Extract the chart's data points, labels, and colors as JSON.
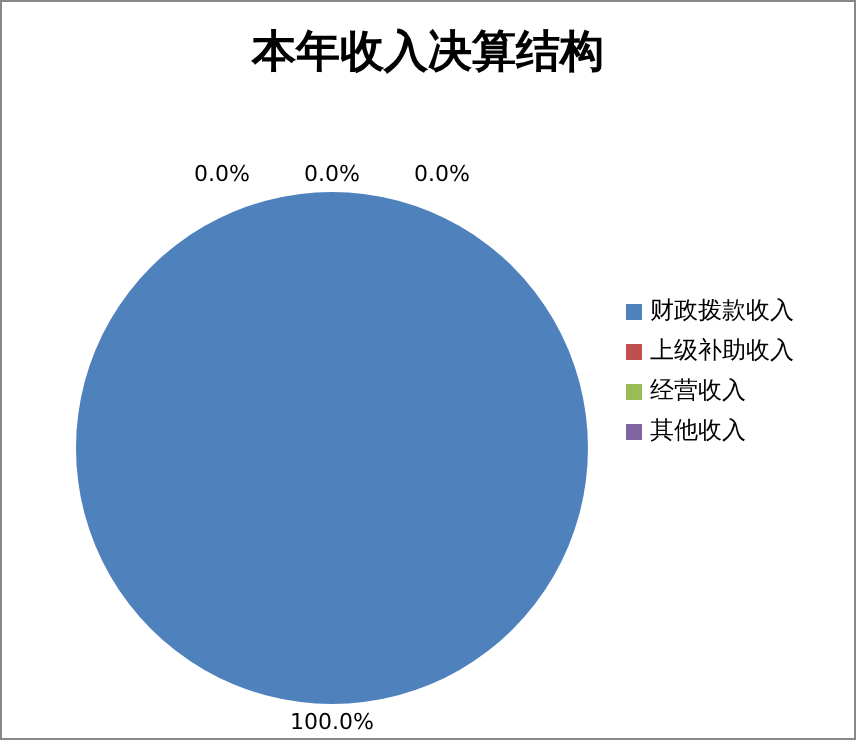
{
  "chart_data": {
    "type": "pie",
    "title": "本年收入决算结构",
    "categories": [
      "财政拨款收入",
      "上级补助收入",
      "经营收入",
      "其他收入"
    ],
    "values": [
      100,
      0,
      0,
      0
    ],
    "colors": [
      "#4f81bd",
      "#c0504d",
      "#9bbb59",
      "#8064a2"
    ],
    "value_labels": [
      "100.0%",
      "0.0%",
      "0.0%",
      "0.0%"
    ],
    "legend": "right"
  }
}
